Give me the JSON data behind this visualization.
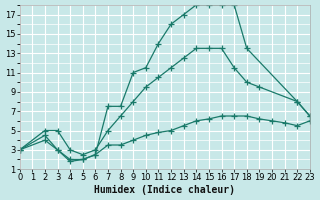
{
  "xlabel": "Humidex (Indice chaleur)",
  "bg_color": "#c8e8e8",
  "grid_color": "#ffffff",
  "line_color": "#1a7a6a",
  "xlim": [
    0,
    23
  ],
  "ylim": [
    1,
    18
  ],
  "xticks": [
    0,
    1,
    2,
    3,
    4,
    5,
    6,
    7,
    8,
    9,
    10,
    11,
    12,
    13,
    14,
    15,
    16,
    17,
    18,
    19,
    20,
    21,
    22,
    23
  ],
  "yticks": [
    1,
    3,
    5,
    7,
    9,
    11,
    13,
    15,
    17
  ],
  "curve1_x": [
    0,
    2,
    3,
    4,
    5,
    6,
    7,
    8,
    9,
    10,
    11,
    12,
    13,
    14,
    15,
    16,
    17,
    18,
    22,
    23
  ],
  "curve1_y": [
    3,
    4.5,
    3,
    2,
    2,
    2.5,
    7.5,
    7.5,
    11,
    11.5,
    14,
    16,
    17,
    18,
    18,
    18,
    18,
    13.5,
    8,
    6.5
  ],
  "curve2_x": [
    0,
    2,
    3,
    4,
    5,
    6,
    7,
    8,
    9,
    10,
    11,
    12,
    13,
    14,
    15,
    16,
    17,
    18,
    19,
    22,
    23
  ],
  "curve2_y": [
    3,
    5,
    5,
    3,
    2.5,
    3,
    5,
    6.5,
    8,
    9.5,
    10.5,
    11.5,
    12.5,
    13.5,
    13.5,
    13.5,
    11.5,
    10,
    9.5,
    8,
    6.5
  ],
  "curve3_x": [
    0,
    2,
    3,
    4,
    5,
    6,
    7,
    8,
    9,
    10,
    11,
    12,
    13,
    14,
    15,
    16,
    17,
    18,
    19,
    20,
    21,
    22,
    23
  ],
  "curve3_y": [
    3,
    4,
    3,
    1.8,
    2,
    2.5,
    3.5,
    3.5,
    4,
    4.5,
    4.8,
    5,
    5.5,
    6,
    6.2,
    6.5,
    6.5,
    6.5,
    6.2,
    6,
    5.8,
    5.5,
    6
  ],
  "tick_fontsize": 6,
  "xlabel_fontsize": 7
}
